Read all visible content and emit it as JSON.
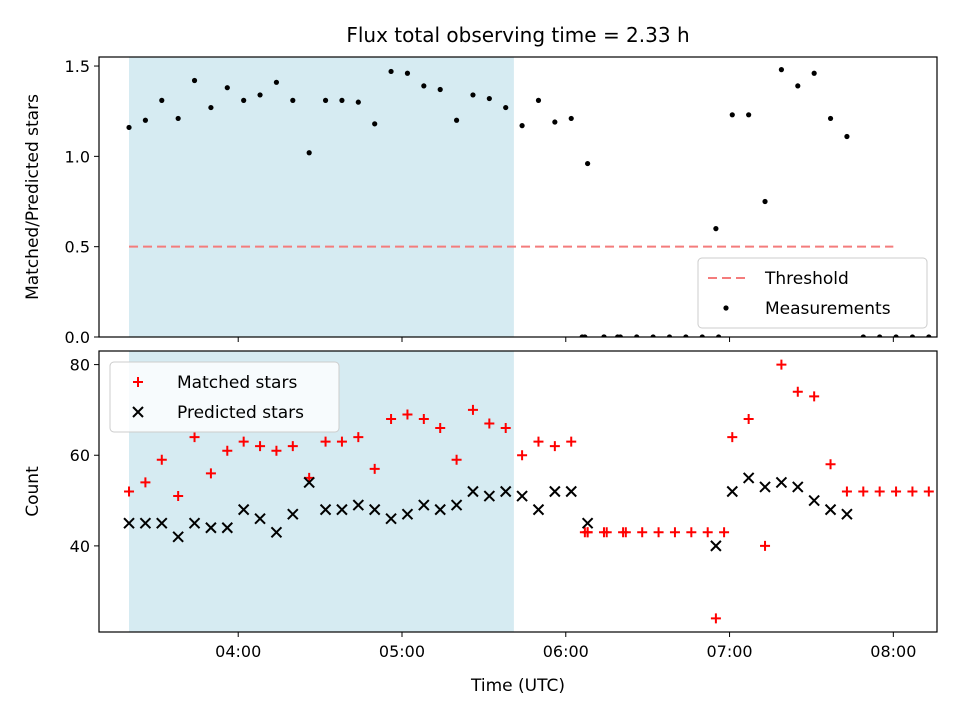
{
  "chart_data": {
    "title": "Flux total observing time = 2.33 h",
    "xlabel": "Time (UTC)",
    "x_ticks": [
      "04:00",
      "05:00",
      "06:00",
      "07:00",
      "08:00"
    ],
    "shaded_span": {
      "start": "03:20",
      "end": "05:41",
      "color": "#add8e6"
    },
    "panels": [
      {
        "type": "scatter",
        "ylabel": "Matched/Predicted stars",
        "ylim": [
          0,
          1.55
        ],
        "y_ticks": [
          "0.0",
          "0.5",
          "1.0",
          "1.5"
        ],
        "legend_position": "lower right",
        "threshold": {
          "name": "Threshold",
          "value": 0.5,
          "x_start": "03:20",
          "x_end": "08:00",
          "color": "#f47c7c"
        },
        "series": [
          {
            "name": "Measurements",
            "marker": "dot",
            "color": "#000000",
            "points": [
              [
                "03:20",
                1.16
              ],
              [
                "03:26",
                1.2
              ],
              [
                "03:32",
                1.31
              ],
              [
                "03:38",
                1.21
              ],
              [
                "03:44",
                1.42
              ],
              [
                "03:50",
                1.27
              ],
              [
                "03:56",
                1.38
              ],
              [
                "04:02",
                1.31
              ],
              [
                "04:08",
                1.34
              ],
              [
                "04:14",
                1.41
              ],
              [
                "04:20",
                1.31
              ],
              [
                "04:26",
                1.02
              ],
              [
                "04:32",
                1.31
              ],
              [
                "04:38",
                1.31
              ],
              [
                "04:44",
                1.3
              ],
              [
                "04:50",
                1.18
              ],
              [
                "04:56",
                1.47
              ],
              [
                "05:02",
                1.46
              ],
              [
                "05:08",
                1.39
              ],
              [
                "05:14",
                1.37
              ],
              [
                "05:20",
                1.2
              ],
              [
                "05:26",
                1.34
              ],
              [
                "05:32",
                1.32
              ],
              [
                "05:38",
                1.27
              ],
              [
                "05:44",
                1.17
              ],
              [
                "05:50",
                1.31
              ],
              [
                "05:56",
                1.19
              ],
              [
                "06:02",
                1.21
              ],
              [
                "06:08",
                0.96
              ],
              [
                "06:14",
                0.0
              ],
              [
                "06:06",
                0.0
              ],
              [
                "06:07",
                0.0
              ],
              [
                "06:14",
                0.0
              ],
              [
                "06:19",
                0.0
              ],
              [
                "06:20",
                0.0
              ],
              [
                "06:26",
                0.0
              ],
              [
                "06:32",
                0.0
              ],
              [
                "06:38",
                0.0
              ],
              [
                "06:44",
                0.0
              ],
              [
                "06:50",
                0.0
              ],
              [
                "06:56",
                0.0
              ],
              [
                "06:55",
                0.6
              ],
              [
                "07:01",
                1.23
              ],
              [
                "07:07",
                1.23
              ],
              [
                "07:13",
                0.75
              ],
              [
                "07:19",
                1.48
              ],
              [
                "07:25",
                1.39
              ],
              [
                "07:31",
                1.46
              ],
              [
                "07:37",
                1.21
              ],
              [
                "07:43",
                1.11
              ],
              [
                "07:49",
                0.0
              ],
              [
                "07:55",
                0.0
              ],
              [
                "08:01",
                0.0
              ],
              [
                "08:07",
                0.0
              ],
              [
                "08:13",
                0.0
              ]
            ]
          }
        ]
      },
      {
        "type": "scatter",
        "ylabel": "Count",
        "ylim": [
          21,
          83
        ],
        "y_ticks": [
          "40",
          "60",
          "80"
        ],
        "legend_position": "upper left",
        "series": [
          {
            "name": "Matched stars",
            "marker": "plus",
            "color": "#ff0000",
            "points": [
              [
                "03:20",
                52
              ],
              [
                "03:26",
                54
              ],
              [
                "03:32",
                59
              ],
              [
                "03:38",
                51
              ],
              [
                "03:44",
                64
              ],
              [
                "03:50",
                56
              ],
              [
                "03:56",
                61
              ],
              [
                "04:02",
                63
              ],
              [
                "04:08",
                62
              ],
              [
                "04:14",
                61
              ],
              [
                "04:20",
                62
              ],
              [
                "04:26",
                55
              ],
              [
                "04:32",
                63
              ],
              [
                "04:38",
                63
              ],
              [
                "04:44",
                64
              ],
              [
                "04:50",
                57
              ],
              [
                "04:56",
                68
              ],
              [
                "05:02",
                69
              ],
              [
                "05:08",
                68
              ],
              [
                "05:14",
                66
              ],
              [
                "05:20",
                59
              ],
              [
                "05:26",
                70
              ],
              [
                "05:32",
                67
              ],
              [
                "05:38",
                66
              ],
              [
                "05:44",
                60
              ],
              [
                "05:50",
                63
              ],
              [
                "05:56",
                62
              ],
              [
                "06:02",
                63
              ],
              [
                "06:08",
                43
              ],
              [
                "06:14",
                43
              ],
              [
                "06:07",
                43
              ],
              [
                "06:08",
                43
              ],
              [
                "06:15",
                43
              ],
              [
                "06:21",
                43
              ],
              [
                "06:22",
                43
              ],
              [
                "06:28",
                43
              ],
              [
                "06:34",
                43
              ],
              [
                "06:40",
                43
              ],
              [
                "06:46",
                43
              ],
              [
                "06:52",
                43
              ],
              [
                "06:58",
                43
              ],
              [
                "06:55",
                24
              ],
              [
                "07:01",
                64
              ],
              [
                "07:07",
                68
              ],
              [
                "07:13",
                40
              ],
              [
                "07:19",
                80
              ],
              [
                "07:25",
                74
              ],
              [
                "07:31",
                73
              ],
              [
                "07:37",
                58
              ],
              [
                "07:43",
                52
              ],
              [
                "07:49",
                52
              ],
              [
                "07:55",
                52
              ],
              [
                "08:01",
                52
              ],
              [
                "08:07",
                52
              ],
              [
                "08:13",
                52
              ]
            ]
          },
          {
            "name": "Predicted stars",
            "marker": "x",
            "color": "#000000",
            "points": [
              [
                "03:20",
                45
              ],
              [
                "03:26",
                45
              ],
              [
                "03:32",
                45
              ],
              [
                "03:38",
                42
              ],
              [
                "03:44",
                45
              ],
              [
                "03:50",
                44
              ],
              [
                "03:56",
                44
              ],
              [
                "04:02",
                48
              ],
              [
                "04:08",
                46
              ],
              [
                "04:14",
                43
              ],
              [
                "04:20",
                47
              ],
              [
                "04:26",
                54
              ],
              [
                "04:32",
                48
              ],
              [
                "04:38",
                48
              ],
              [
                "04:44",
                49
              ],
              [
                "04:50",
                48
              ],
              [
                "04:56",
                46
              ],
              [
                "05:02",
                47
              ],
              [
                "05:08",
                49
              ],
              [
                "05:14",
                48
              ],
              [
                "05:20",
                49
              ],
              [
                "05:26",
                52
              ],
              [
                "05:32",
                51
              ],
              [
                "05:38",
                52
              ],
              [
                "05:44",
                51
              ],
              [
                "05:50",
                48
              ],
              [
                "05:56",
                52
              ],
              [
                "06:02",
                52
              ],
              [
                "06:08",
                45
              ],
              [
                "06:55",
                40
              ],
              [
                "07:01",
                52
              ],
              [
                "07:07",
                55
              ],
              [
                "07:13",
                53
              ],
              [
                "07:19",
                54
              ],
              [
                "07:25",
                53
              ],
              [
                "07:31",
                50
              ],
              [
                "07:37",
                48
              ],
              [
                "07:43",
                47
              ]
            ]
          }
        ]
      }
    ]
  }
}
